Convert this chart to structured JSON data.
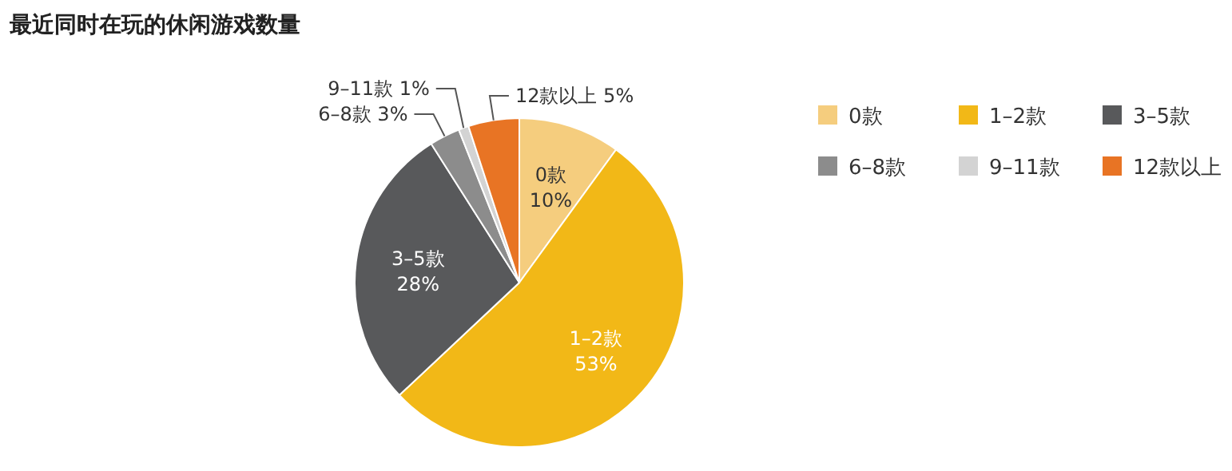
{
  "chart_data": {
    "type": "pie",
    "title": "最近同时在玩的休闲游戏数量",
    "categories": [
      "0款",
      "1–2款",
      "3–5款",
      "6–8款",
      "9–11款",
      "12款以上"
    ],
    "values": [
      10,
      53,
      28,
      3,
      1,
      5
    ],
    "colors": [
      "#f5cd7e",
      "#f2b817",
      "#58595b",
      "#8c8c8c",
      "#d3d3d3",
      "#e87424"
    ],
    "value_labels": [
      "10%",
      "53%",
      "28%",
      "3%",
      "1%",
      "5%"
    ],
    "legend": "top right"
  }
}
